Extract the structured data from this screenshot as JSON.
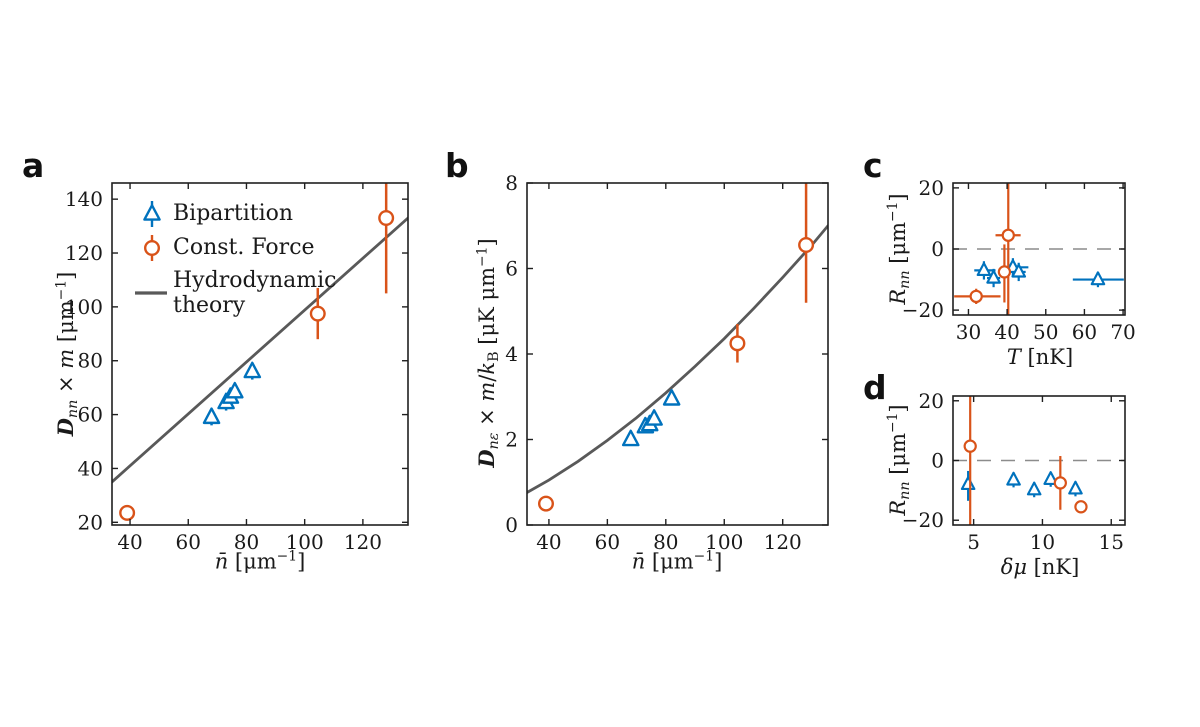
{
  "figure": {
    "background": "#ffffff"
  },
  "colors": {
    "bipartition": "#0072BD",
    "const_force": "#D95319",
    "theory_line": "#595959",
    "zero_dash": "#8c8c8c",
    "axis": "#1f1f1f",
    "text": "#1a1a1a"
  },
  "legend": {
    "items": [
      {
        "label": "Bipartition",
        "marker": "triangle"
      },
      {
        "label": "Const. Force",
        "marker": "circle"
      },
      {
        "label": "Hydrodynamic theory",
        "lines": [
          "Hydrodynamic",
          "theory"
        ],
        "marker": "line"
      }
    ]
  },
  "chart_data": [
    {
      "panel": "a",
      "type": "scatter",
      "xlabel": "n̄ [μm⁻¹]",
      "ylabel": "𝔇nn × m [μm⁻¹]",
      "xlabel_parts": [
        {
          "t": "n̄",
          "s": "it"
        },
        {
          "t": " [μm",
          "s": "up"
        },
        {
          "t": "−1",
          "s": "sup"
        },
        {
          "t": "]",
          "s": "up"
        }
      ],
      "ylabel_parts": [
        {
          "t": "D",
          "s": "frak"
        },
        {
          "t": "nn",
          "s": "subit"
        },
        {
          "t": " × ",
          "s": "up"
        },
        {
          "t": "m",
          "s": "it"
        },
        {
          "t": " [μm",
          "s": "up"
        },
        {
          "t": "−1",
          "s": "sup"
        },
        {
          "t": "]",
          "s": "up"
        }
      ],
      "xlim": [
        33.8,
        135.5
      ],
      "ylim": [
        19,
        146
      ],
      "xticks": [
        40,
        60,
        80,
        100,
        120
      ],
      "yticks": [
        20,
        40,
        60,
        80,
        100,
        120,
        140
      ],
      "zeroline": false,
      "grid": false,
      "legend_position": "upper-left-inside",
      "series": [
        {
          "name": "Hydrodynamic theory",
          "kind": "line",
          "color_key": "theory_line",
          "line_points": [
            [
              33.8,
              35
            ],
            [
              135.5,
              133
            ]
          ]
        },
        {
          "name": "Bipartition",
          "kind": "scatter",
          "marker": "triangle",
          "color_key": "bipartition",
          "points": [
            {
              "x": 68,
              "y": 59,
              "ye": [
                56,
                62
              ]
            },
            {
              "x": 73,
              "y": 64.5,
              "ye": [
                61.5,
                67.5
              ]
            },
            {
              "x": 74.5,
              "y": 66.5,
              "ye": [
                63.5,
                69.5
              ]
            },
            {
              "x": 76,
              "y": 68.5,
              "ye": [
                65.5,
                71.5
              ]
            },
            {
              "x": 82,
              "y": 76,
              "ye": [
                73,
                79
              ]
            }
          ]
        },
        {
          "name": "Const. Force",
          "kind": "scatter",
          "marker": "circle",
          "color_key": "const_force",
          "points": [
            {
              "x": 39,
              "y": 23.5,
              "ye": [
                22,
                25
              ]
            },
            {
              "x": 104.5,
              "y": 97.5,
              "ye": [
                88,
                107
              ]
            },
            {
              "x": 128,
              "y": 133,
              "ye": [
                105,
                149
              ]
            }
          ]
        }
      ]
    },
    {
      "panel": "b",
      "type": "scatter",
      "xlabel": "n̄ [μm⁻¹]",
      "ylabel": "𝔇nε × m/kB [μK μm⁻¹]",
      "xlabel_parts": [
        {
          "t": "n̄",
          "s": "it"
        },
        {
          "t": " [μm",
          "s": "up"
        },
        {
          "t": "−1",
          "s": "sup"
        },
        {
          "t": "]",
          "s": "up"
        }
      ],
      "ylabel_parts": [
        {
          "t": "D",
          "s": "frak"
        },
        {
          "t": "nε",
          "s": "subit"
        },
        {
          "t": " × ",
          "s": "up"
        },
        {
          "t": "m",
          "s": "it"
        },
        {
          "t": "/",
          "s": "up"
        },
        {
          "t": "k",
          "s": "it"
        },
        {
          "t": "B",
          "s": "subup"
        },
        {
          "t": " [μK μm",
          "s": "up"
        },
        {
          "t": "−1",
          "s": "sup"
        },
        {
          "t": "]",
          "s": "up"
        }
      ],
      "xlim": [
        32.5,
        135.5
      ],
      "ylim": [
        0,
        8
      ],
      "xticks": [
        40,
        60,
        80,
        100,
        120
      ],
      "yticks": [
        0,
        2,
        4,
        6,
        8
      ],
      "zeroline": false,
      "grid": false,
      "series": [
        {
          "name": "Hydrodynamic theory",
          "kind": "line",
          "color_key": "theory_line",
          "line_points": [
            [
              32.5,
              0.76
            ],
            [
              40,
              1.05
            ],
            [
              50,
              1.49
            ],
            [
              60,
              1.98
            ],
            [
              70,
              2.51
            ],
            [
              80,
              3.09
            ],
            [
              90,
              3.71
            ],
            [
              100,
              4.36
            ],
            [
              110,
              5.06
            ],
            [
              120,
              5.79
            ],
            [
              130,
              6.55
            ],
            [
              135.5,
              7.0
            ]
          ]
        },
        {
          "name": "Bipartition",
          "kind": "scatter",
          "marker": "triangle",
          "color_key": "bipartition",
          "points": [
            {
              "x": 68,
              "y": 2.0,
              "ye": [
                1.9,
                2.1
              ]
            },
            {
              "x": 73,
              "y": 2.3,
              "ye": [
                2.2,
                2.4
              ]
            },
            {
              "x": 74.5,
              "y": 2.35,
              "ye": [
                2.25,
                2.45
              ]
            },
            {
              "x": 76,
              "y": 2.48,
              "ye": [
                2.38,
                2.58
              ]
            },
            {
              "x": 82,
              "y": 2.95,
              "ye": [
                2.85,
                3.05
              ]
            }
          ]
        },
        {
          "name": "Const. Force",
          "kind": "scatter",
          "marker": "circle",
          "color_key": "const_force",
          "points": [
            {
              "x": 39,
              "y": 0.5,
              "ye": [
                0.43,
                0.57
              ]
            },
            {
              "x": 104.5,
              "y": 4.25,
              "ye": [
                3.8,
                4.7
              ]
            },
            {
              "x": 128,
              "y": 6.55,
              "ye": [
                5.2,
                8.3
              ]
            }
          ]
        }
      ]
    },
    {
      "panel": "c",
      "type": "scatter",
      "xlabel": "T [nK]",
      "ylabel": "Rnn [μm⁻¹]",
      "xlabel_parts": [
        {
          "t": "T",
          "s": "it"
        },
        {
          "t": " [nK]",
          "s": "up"
        }
      ],
      "ylabel_parts": [
        {
          "t": "R",
          "s": "it"
        },
        {
          "t": "nn",
          "s": "subit"
        },
        {
          "t": " [μm",
          "s": "up"
        },
        {
          "t": "−1",
          "s": "sup"
        },
        {
          "t": "]",
          "s": "up"
        }
      ],
      "xlim": [
        26,
        70.5
      ],
      "ylim": [
        -21.6,
        21.6
      ],
      "xticks": [
        30,
        40,
        50,
        60,
        70
      ],
      "yticks": [
        -20,
        0,
        20
      ],
      "zeroline": true,
      "grid": false,
      "series": [
        {
          "name": "Bipartition",
          "kind": "scatter",
          "marker": "triangle",
          "color_key": "bipartition",
          "points": [
            {
              "x": 34,
              "y": -7,
              "ye": [
                -10,
                -4
              ],
              "xe": [
                31.5,
                37
              ]
            },
            {
              "x": 36.5,
              "y": -9.5,
              "ye": [
                -12.5,
                -6.5
              ],
              "xe": [
                34.8,
                38.2
              ]
            },
            {
              "x": 41.5,
              "y": -6,
              "ye": [
                -9,
                -3
              ],
              "xe": [
                39,
                45.5
              ]
            },
            {
              "x": 43,
              "y": -7.5,
              "ye": [
                -10.5,
                -4.5
              ],
              "xe": [
                41.2,
                44.8
              ]
            },
            {
              "x": 63.5,
              "y": -10,
              "ye": [
                -12.5,
                -7.5
              ],
              "xe": [
                57,
                70.2
              ]
            }
          ]
        },
        {
          "name": "Const. Force",
          "kind": "scatter",
          "marker": "circle",
          "color_key": "const_force",
          "points": [
            {
              "x": 40.3,
              "y": 4.5,
              "ye": [
                -24,
                24
              ],
              "xe": [
                37,
                43.5
              ]
            },
            {
              "x": 39.3,
              "y": -7.5,
              "ye": [
                -17.5,
                1.5
              ],
              "xe": [
                37.8,
                40.8
              ]
            },
            {
              "x": 32,
              "y": -15.5,
              "ye": [
                -18,
                -13
              ],
              "xe": [
                26.3,
                38.3
              ]
            }
          ]
        }
      ]
    },
    {
      "panel": "d",
      "type": "scatter",
      "xlabel": "δμ [nK]",
      "ylabel": "Rnn [μm⁻¹]",
      "xlabel_parts": [
        {
          "t": "δμ",
          "s": "it"
        },
        {
          "t": " [nK]",
          "s": "up"
        }
      ],
      "ylabel_parts": [
        {
          "t": "R",
          "s": "it"
        },
        {
          "t": "nn",
          "s": "subit"
        },
        {
          "t": " [μm",
          "s": "up"
        },
        {
          "t": "−1",
          "s": "sup"
        },
        {
          "t": "]",
          "s": "up"
        }
      ],
      "xlim": [
        3.5,
        16
      ],
      "ylim": [
        -21.6,
        21.6
      ],
      "xticks": [
        5,
        10,
        15
      ],
      "yticks": [
        -20,
        0,
        20
      ],
      "zeroline": true,
      "grid": false,
      "series": [
        {
          "name": "Bipartition",
          "kind": "scatter",
          "marker": "triangle",
          "color_key": "bipartition",
          "points": [
            {
              "x": 4.6,
              "y": -8,
              "ye": [
                -13.5,
                -3.5
              ]
            },
            {
              "x": 7.9,
              "y": -6.5,
              "ye": [
                -9,
                -4
              ]
            },
            {
              "x": 9.4,
              "y": -9.8,
              "ye": [
                -12.3,
                -7.3
              ]
            },
            {
              "x": 10.6,
              "y": -6.3,
              "ye": [
                -8.8,
                -3.8
              ]
            },
            {
              "x": 12.4,
              "y": -9.5,
              "ye": [
                -12,
                -7
              ]
            }
          ]
        },
        {
          "name": "Const. Force",
          "kind": "scatter",
          "marker": "circle",
          "color_key": "const_force",
          "points": [
            {
              "x": 4.75,
              "y": 4.8,
              "ye": [
                -24,
                24
              ]
            },
            {
              "x": 11.3,
              "y": -7.5,
              "ye": [
                -16.5,
                1.5
              ]
            },
            {
              "x": 12.8,
              "y": -15.5,
              "ye": [
                -17.5,
                -13.5
              ]
            }
          ]
        }
      ]
    }
  ]
}
